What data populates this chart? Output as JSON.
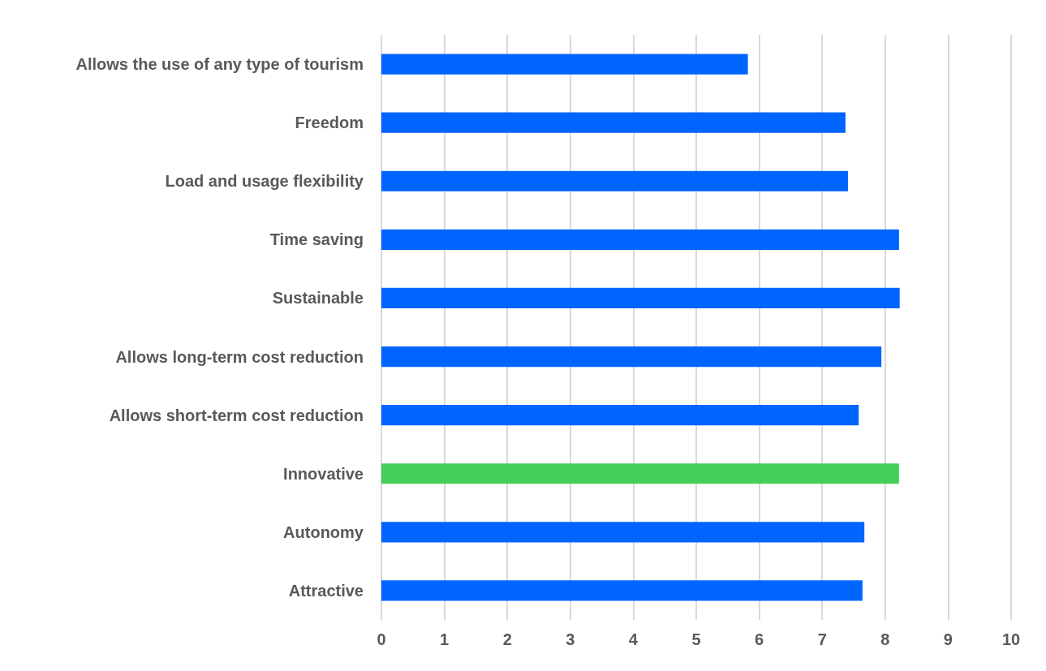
{
  "chart_data": {
    "type": "bar",
    "orientation": "horizontal",
    "categories": [
      "Allows the use of any type of tourism",
      "Freedom",
      "Load and usage flexibility",
      "Time saving",
      "Sustainable",
      "Allows long-term cost reduction",
      "Allows short-term cost reduction",
      "Innovative",
      "Autonomy",
      "Attractive"
    ],
    "values": [
      5.82,
      7.37,
      7.41,
      8.22,
      8.23,
      7.94,
      7.58,
      8.22,
      7.67,
      7.64
    ],
    "colors": [
      "#0064ff",
      "#0064ff",
      "#0064ff",
      "#0064ff",
      "#0064ff",
      "#0064ff",
      "#0064ff",
      "#44d058",
      "#0064ff",
      "#0064ff"
    ],
    "xlim": [
      0,
      10
    ],
    "xticks": [
      0,
      1,
      2,
      3,
      4,
      5,
      6,
      7,
      8,
      9,
      10
    ],
    "grid": "x"
  }
}
